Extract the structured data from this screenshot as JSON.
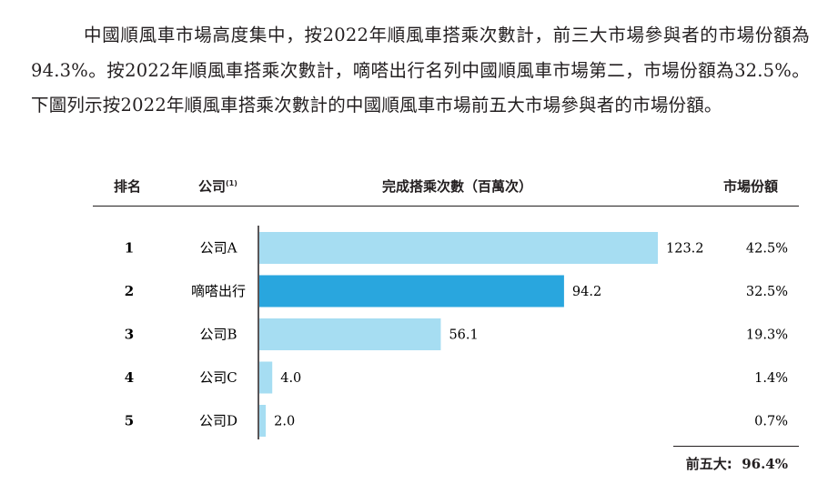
{
  "intro_text": "中國順風車市場高度集中，按2022年順風車搭乘次數計，前三大市場參與者的市場份額為94.3%。按2022年順風車搭乘次數計，嘀嗒出行名列中國順風車市場第二，市場份額為32.5%。下圖列示按2022年順風車搭乘次數計的中國順風車市場前五大市場參與者的市場份額。",
  "table_headers": {
    "rank": "排名",
    "company": "公司",
    "company_note": "(1)",
    "rides": "完成搭乘次數（百萬次）",
    "share": "市場份額"
  },
  "total": {
    "label": "前五大:",
    "value": "96.4%"
  },
  "colors": {
    "bar_default": "#a6ddf2",
    "bar_highlight": "#29a6de",
    "axis": "#231f20"
  },
  "chart_data": {
    "type": "bar",
    "orientation": "horizontal",
    "categories": [
      "公司A",
      "嘀嗒出行",
      "公司B",
      "公司C",
      "公司D"
    ],
    "ranks": [
      "1",
      "2",
      "3",
      "4",
      "5"
    ],
    "values": [
      123.2,
      94.2,
      56.1,
      4.0,
      2.0
    ],
    "value_labels": [
      "123.2",
      "94.2",
      "56.1",
      "4.0",
      "2.0"
    ],
    "shares": [
      "42.5%",
      "32.5%",
      "19.3%",
      "1.4%",
      "0.7%"
    ],
    "highlight_index": 1,
    "xlim": [
      0,
      123.2
    ],
    "grid": false,
    "title": "",
    "xlabel": "完成搭乘次數（百萬次）",
    "ylabel": ""
  }
}
